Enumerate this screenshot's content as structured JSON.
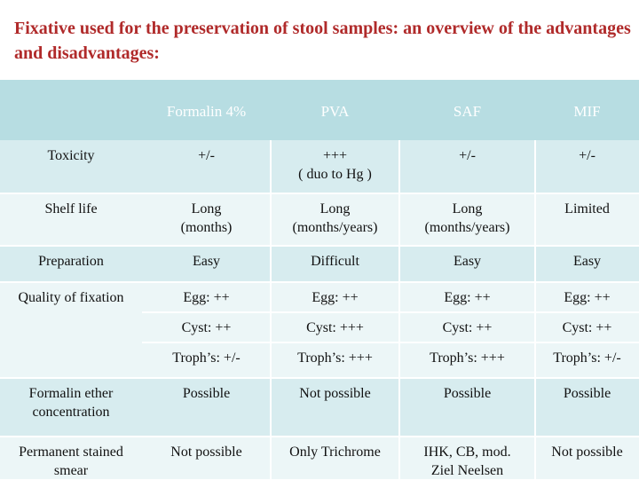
{
  "title": "Fixative used for the preservation of stool samples: an overview of the advantages and disadvantages:",
  "table": {
    "headers": [
      "",
      "Formalin 4%",
      "PVA",
      "SAF",
      "MIF"
    ],
    "rows": [
      {
        "label": "Toxicity",
        "cells": [
          [
            "+/-"
          ],
          [
            "+++",
            "( duo to Hg )"
          ],
          [
            "+/-"
          ],
          [
            "+/-"
          ]
        ]
      },
      {
        "label": "Shelf life",
        "cells": [
          [
            "Long",
            "(months)"
          ],
          [
            "Long",
            "(months/years)"
          ],
          [
            "Long",
            "(months/years)"
          ],
          [
            "Limited"
          ]
        ]
      },
      {
        "label": "Preparation",
        "cells": [
          [
            "Easy"
          ],
          [
            "Difficult"
          ],
          [
            "Easy"
          ],
          [
            "Easy"
          ]
        ]
      },
      {
        "label": "Quality of fixation",
        "cells": [
          [
            "Egg: ++"
          ],
          [
            "Egg: ++"
          ],
          [
            "Egg: ++"
          ],
          [
            "Egg: ++"
          ]
        ]
      },
      {
        "label": "",
        "cells": [
          [
            "Cyst: ++"
          ],
          [
            "Cyst: +++"
          ],
          [
            "Cyst: ++"
          ],
          [
            "Cyst: ++"
          ]
        ]
      },
      {
        "label": "",
        "cells": [
          [
            "Troph’s: +/-"
          ],
          [
            "Troph’s: +++"
          ],
          [
            "Troph’s: +++"
          ],
          [
            "Troph’s: +/-"
          ]
        ]
      },
      {
        "label": "Formalin ether concentration",
        "cells": [
          [
            "Possible"
          ],
          [
            "Not possible"
          ],
          [
            "Possible"
          ],
          [
            "Possible"
          ]
        ]
      },
      {
        "label": "Permanent stained smear",
        "cells": [
          [
            "Not possible"
          ],
          [
            "Only Trichrome"
          ],
          [
            "IHK, CB, mod.",
            "Ziel Neelsen"
          ],
          [
            "Not possible"
          ]
        ]
      }
    ]
  },
  "colors": {
    "title": "#b02a2a",
    "header_bg": "#b7dde2",
    "row_band_1": "#d7ecef",
    "row_band_2": "#ecf6f7"
  }
}
